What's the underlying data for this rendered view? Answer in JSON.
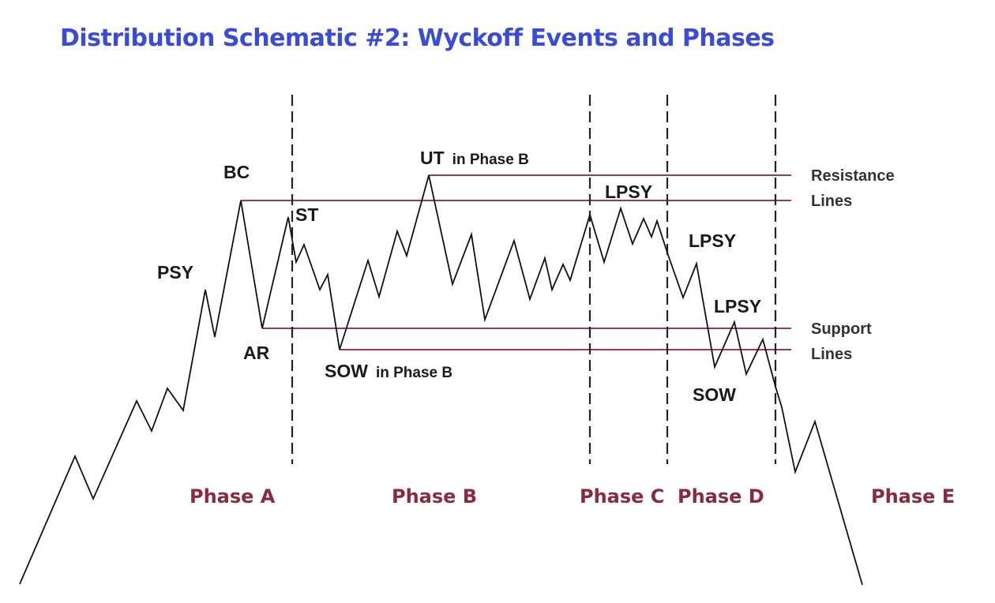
{
  "title": "Distribution Schematic #2: Wyckoff Events and Phases",
  "colors": {
    "title": "#3a4bd6",
    "phase": "#8b2a3c",
    "level_line": "#9a3a4a",
    "price": "#111111",
    "divider": "#222222"
  },
  "events": {
    "bc": "BC",
    "psy": "PSY",
    "ar": "AR",
    "st": "ST",
    "ut": "UT",
    "ut_suffix": "in Phase B",
    "sow_b": "SOW",
    "sow_b_suffix": "in Phase B",
    "lpsy_1": "LPSY",
    "lpsy_2": "LPSY",
    "lpsy_3": "LPSY",
    "sow": "SOW"
  },
  "side_labels": {
    "resistance_1": "Resistance",
    "resistance_2": "Lines",
    "support_1": "Support",
    "support_2": "Lines"
  },
  "phases": {
    "a": "Phase A",
    "b": "Phase B",
    "c": "Phase C",
    "d": "Phase D",
    "e": "Phase E"
  }
}
